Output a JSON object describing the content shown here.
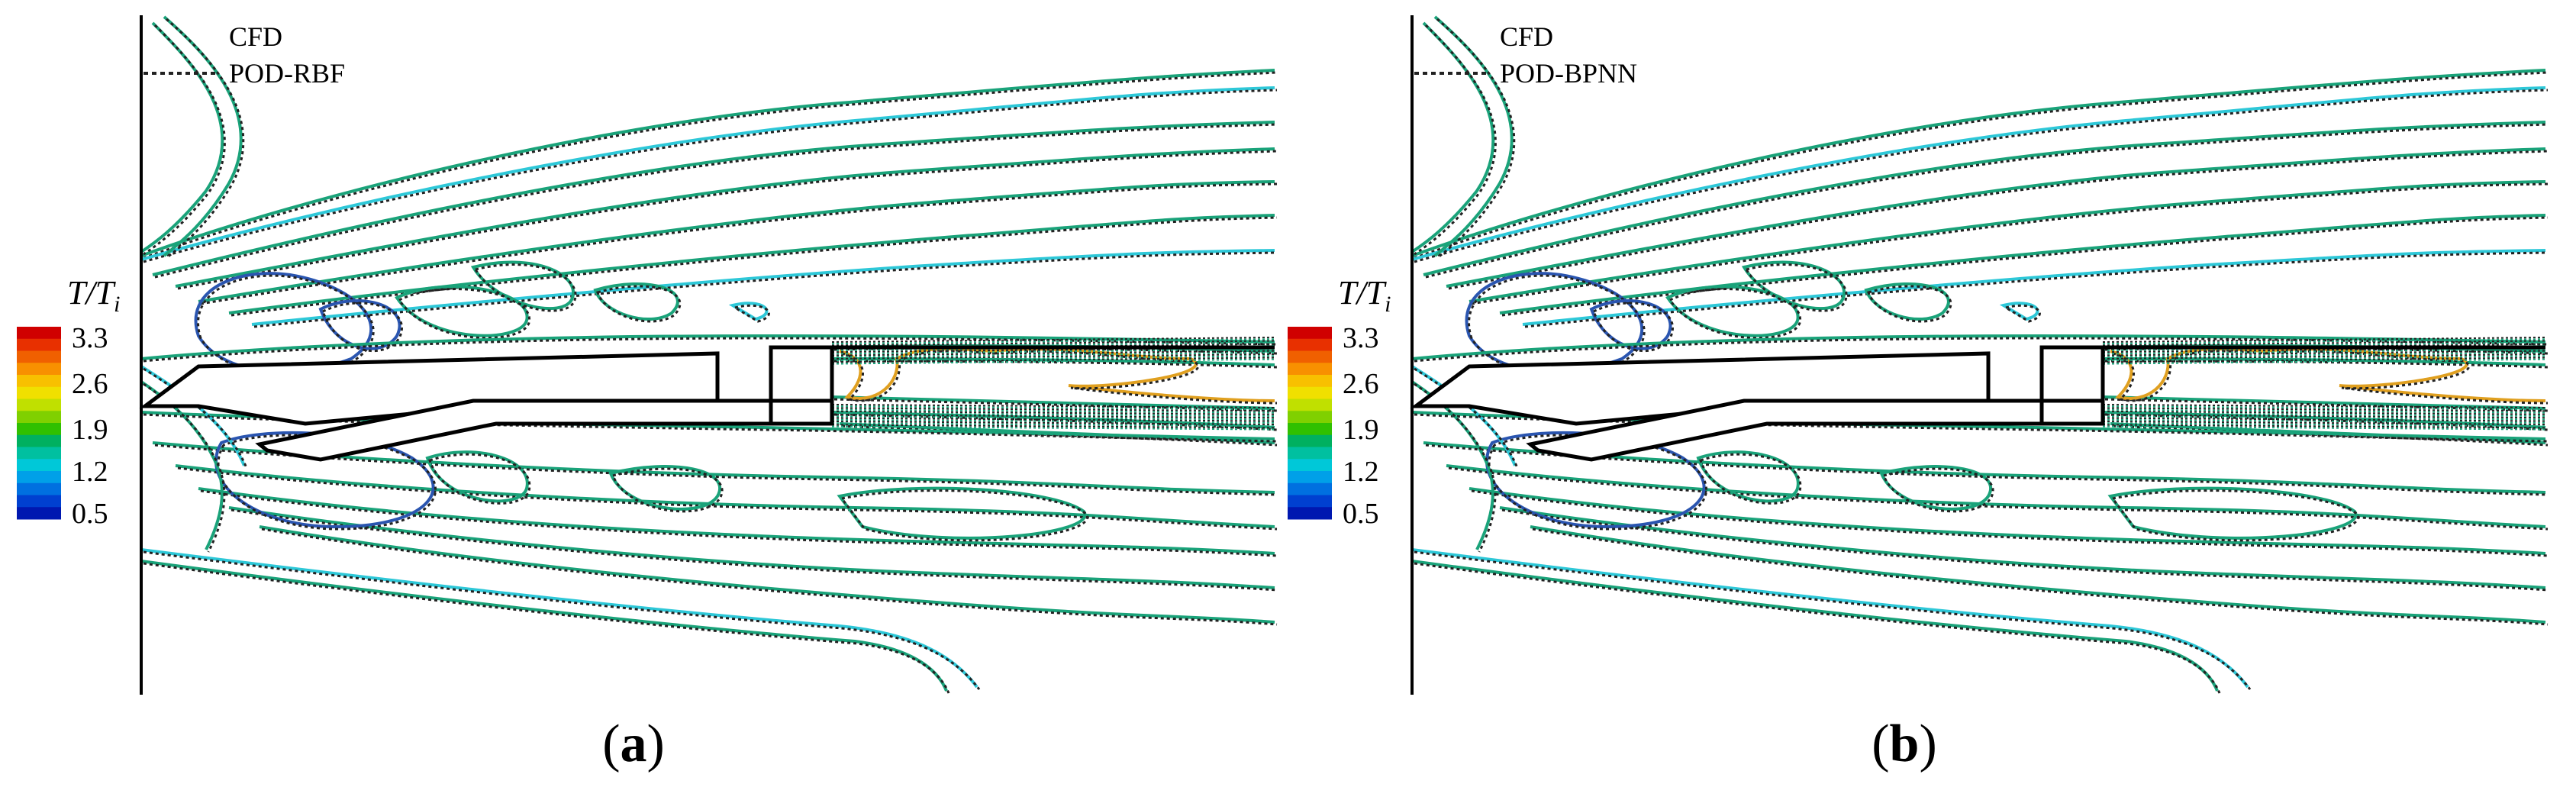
{
  "panels": [
    {
      "id": "a",
      "caption_letter": "a",
      "legend": [
        {
          "label": "CFD",
          "style": "solid-colored"
        },
        {
          "label": "POD-RBF",
          "style": "dotted"
        }
      ],
      "colorbar": {
        "title_main": "T/T",
        "title_sub": "i",
        "ticks": [
          "3.3",
          "2.6",
          "1.9",
          "1.2",
          "0.5"
        ]
      }
    },
    {
      "id": "b",
      "caption_letter": "b",
      "legend": [
        {
          "label": "CFD",
          "style": "solid-colored"
        },
        {
          "label": "POD-BPNN",
          "style": "dotted"
        }
      ],
      "colorbar": {
        "title_main": "T/T",
        "title_sub": "i",
        "ticks": [
          "3.3",
          "2.6",
          "1.9",
          "1.2",
          "0.5"
        ]
      }
    }
  ],
  "colors": {
    "contour_primary": "#1aa37a",
    "contour_cyan": "#2ec8d8",
    "contour_blue": "#2a55b0",
    "contour_hot": "#e0a020",
    "dotted": "#222222"
  }
}
